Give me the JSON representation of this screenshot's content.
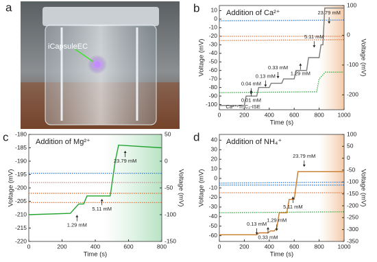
{
  "photo": {
    "panel_label": "a",
    "caption": "iCapsuleEC"
  },
  "chart_data": [
    {
      "type": "line",
      "panel_label": "b",
      "title": "Addition of Ca²⁺",
      "xlabel": "Time (s)",
      "ylabel": "Voltage (mV)",
      "y2label": "Voltage (mV)",
      "xlim": [
        0,
        1000
      ],
      "xticks": [
        0,
        200,
        400,
        600,
        800,
        1000
      ],
      "ylim": [
        -106,
        16
      ],
      "yticks": [
        -100,
        -90,
        -80,
        -70,
        -60,
        -50,
        -40,
        -30,
        -20,
        -10,
        0,
        10
      ],
      "y2lim": [
        -250,
        100
      ],
      "y2ticks": [
        -200,
        -100,
        0,
        100
      ],
      "annotations": [
        "Ca²⁺-Ti₃C₂-ISE",
        "0.01 mM",
        "0.04 mM",
        "0.13 mM",
        "0.33 mM",
        "1.29 mM",
        "5.11 mM",
        "23.79 mM"
      ],
      "series": [
        {
          "color": "#2b7bd6",
          "style": "dotted",
          "x": [
            0,
            1000
          ],
          "values": [
            -2,
            -1
          ]
        },
        {
          "color": "#e0763c",
          "style": "dotted",
          "x": [
            0,
            1000
          ],
          "values": [
            -20,
            -20
          ]
        },
        {
          "color": "#e0763c",
          "style": "dotted",
          "x": [
            0,
            1000
          ],
          "values": [
            -25,
            -24
          ]
        },
        {
          "color": "#2ea83c",
          "style": "dotted",
          "x": [
            0,
            780,
            800,
            850,
            1000
          ],
          "values": [
            -86,
            -85,
            -70,
            -62,
            -62
          ]
        },
        {
          "color": "#7a7a7a",
          "style": "solid",
          "x": [
            0,
            200,
            215,
            300,
            315,
            400,
            415,
            500,
            515,
            600,
            615,
            700,
            715,
            800,
            815,
            830,
            845,
            1000
          ],
          "values": [
            -101,
            -101,
            -90,
            -90,
            -80,
            -80,
            -75,
            -75,
            -70,
            -70,
            -60,
            -60,
            -45,
            -45,
            -30,
            -30,
            13,
            13
          ]
        }
      ]
    },
    {
      "type": "line",
      "panel_label": "c",
      "title": "Addition of Mg²⁺",
      "xlabel": "Time (s)",
      "ylabel": "Voltage (mV)",
      "y2label": "Voltage (mV)",
      "xlim": [
        0,
        800
      ],
      "xticks": [
        0,
        200,
        400,
        600,
        800
      ],
      "ylim": [
        -220,
        -180
      ],
      "yticks": [
        -220,
        -215,
        -210,
        -205,
        -200,
        -195,
        -190,
        -185,
        -180
      ],
      "y2lim": [
        -150,
        50
      ],
      "y2ticks": [
        -150,
        -100,
        -50,
        0,
        50
      ],
      "annotations": [
        "1.29 mM",
        "5.11 mM",
        "23.79 mM"
      ],
      "series": [
        {
          "color": "#2b7bd6",
          "style": "dotted",
          "x": [
            0,
            800
          ],
          "values": [
            -194.5,
            -194.5
          ]
        },
        {
          "color": "#c99a9a",
          "style": "dotted",
          "x": [
            0,
            800
          ],
          "values": [
            -198,
            -198
          ]
        },
        {
          "color": "#e0763c",
          "style": "dotted",
          "x": [
            0,
            800
          ],
          "values": [
            -202,
            -202
          ]
        },
        {
          "color": "#e0763c",
          "style": "dotted",
          "x": [
            0,
            800
          ],
          "values": [
            -205.5,
            -205.5
          ]
        },
        {
          "color": "#21a32f",
          "style": "solid",
          "x": [
            0,
            250,
            300,
            330,
            350,
            490,
            520,
            540,
            800
          ],
          "values": [
            -210,
            -209.5,
            -206,
            -206,
            -203,
            -203,
            -190,
            -184,
            -185
          ]
        }
      ]
    },
    {
      "type": "line",
      "panel_label": "d",
      "title": "Addition of NH₄⁺",
      "xlabel": "Time (s)",
      "ylabel": "Voltage (mV)",
      "y2label": "Voltage (mV)",
      "xlim": [
        0,
        1000
      ],
      "xticks": [
        0,
        200,
        400,
        600,
        800,
        1000
      ],
      "ylim": [
        -66,
        46
      ],
      "yticks": [
        -60,
        -50,
        -40,
        -30,
        -20,
        -10,
        0,
        10,
        20,
        30,
        40
      ],
      "y2lim": [
        -350,
        100
      ],
      "y2ticks": [
        -350,
        -300,
        -250,
        -200,
        -150,
        -100,
        -50,
        0,
        50,
        100
      ],
      "annotations": [
        "0.13 mM",
        "0.33 mM",
        "1.29 mM",
        "5.11 mM",
        "23.79 mM"
      ],
      "series": [
        {
          "color": "#2b7bd6",
          "style": "dotted",
          "x": [
            0,
            1000
          ],
          "values": [
            -5,
            -4
          ]
        },
        {
          "color": "#2b7bd6",
          "style": "dotted",
          "x": [
            0,
            1000
          ],
          "values": [
            -7,
            -7
          ]
        },
        {
          "color": "#e0763c",
          "style": "dotted",
          "x": [
            0,
            1000
          ],
          "values": [
            -15,
            -15
          ]
        },
        {
          "color": "#2ea83c",
          "style": "dotted",
          "x": [
            0,
            1000
          ],
          "values": [
            -36,
            -35
          ]
        },
        {
          "color": "#c8792a",
          "style": "solid",
          "x": [
            0,
            300,
            320,
            390,
            410,
            440,
            460,
            480,
            540,
            560,
            600,
            630,
            1000
          ],
          "values": [
            -59,
            -59,
            -57,
            -57,
            -55,
            -55,
            -52,
            -36,
            -36,
            -22,
            -22,
            7,
            7
          ]
        }
      ]
    }
  ]
}
